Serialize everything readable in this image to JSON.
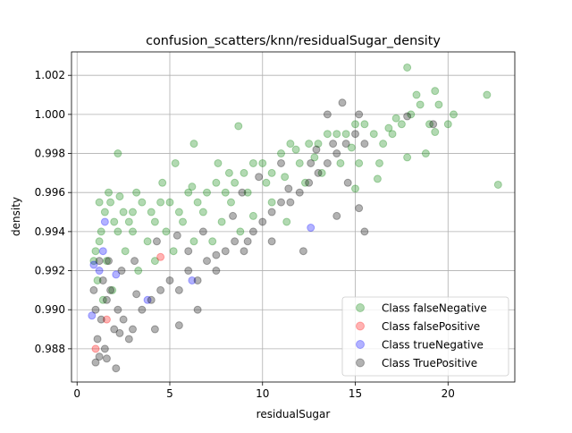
{
  "chart_data": {
    "type": "scatter",
    "title": "confusion_scatters/knn/residualSugar_density",
    "xlabel": "residualSugar",
    "ylabel": "density",
    "xlim": [
      -0.3,
      23.6
    ],
    "ylim": [
      0.9863,
      1.0032
    ],
    "xticks": [
      0,
      5,
      10,
      15,
      20
    ],
    "yticks": [
      0.988,
      0.99,
      0.992,
      0.994,
      0.996,
      0.998,
      1.0,
      1.002
    ],
    "grid": true,
    "legend_position": "lower-right",
    "series": [
      {
        "name": "Class falseNegative",
        "color": "#008000",
        "points": [
          [
            1.2,
            0.9935
          ],
          [
            1.5,
            0.995
          ],
          [
            1.0,
            0.993
          ],
          [
            2.0,
            0.9945
          ],
          [
            1.8,
            0.9955
          ],
          [
            1.3,
            0.994
          ],
          [
            1.1,
            0.9915
          ],
          [
            1.6,
            0.9925
          ],
          [
            2.2,
            0.994
          ],
          [
            2.5,
            0.995
          ],
          [
            3.0,
            0.995
          ],
          [
            3.2,
            0.996
          ],
          [
            2.8,
            0.9945
          ],
          [
            3.5,
            0.9955
          ],
          [
            4.0,
            0.995
          ],
          [
            4.5,
            0.9955
          ],
          [
            4.2,
            0.9945
          ],
          [
            5.0,
            0.9955
          ],
          [
            5.5,
            0.995
          ],
          [
            6.0,
            0.996
          ],
          [
            6.5,
            0.9955
          ],
          [
            7.0,
            0.996
          ],
          [
            7.5,
            0.9965
          ],
          [
            8.0,
            0.996
          ],
          [
            8.5,
            0.9965
          ],
          [
            9.0,
            0.997
          ],
          [
            9.5,
            0.9975
          ],
          [
            10.0,
            0.9975
          ],
          [
            10.5,
            0.997
          ],
          [
            11.0,
            0.998
          ],
          [
            11.5,
            0.9985
          ],
          [
            12.0,
            0.9975
          ],
          [
            12.5,
            0.9985
          ],
          [
            13.0,
            0.9985
          ],
          [
            13.5,
            0.999
          ],
          [
            14.0,
            0.999
          ],
          [
            14.5,
            0.999
          ],
          [
            15.0,
            0.9995
          ],
          [
            15.5,
            0.9995
          ],
          [
            16.0,
            0.999
          ],
          [
            16.5,
            0.9985
          ],
          [
            17.0,
            0.999
          ],
          [
            17.5,
            0.9995
          ],
          [
            18.0,
            1.0
          ],
          [
            18.5,
            1.0005
          ],
          [
            19.0,
            0.9995
          ],
          [
            19.5,
            1.0005
          ],
          [
            20.0,
            0.9995
          ],
          [
            20.3,
            1.0
          ],
          [
            17.8,
            1.0024
          ],
          [
            18.3,
            1.001
          ],
          [
            19.3,
            1.0012
          ],
          [
            22.1,
            1.001
          ],
          [
            22.7,
            0.9964
          ],
          [
            19.3,
            0.9991
          ],
          [
            18.8,
            0.998
          ],
          [
            17.8,
            0.9978
          ],
          [
            16.2,
            0.9967
          ],
          [
            2.2,
            0.998
          ],
          [
            6.3,
            0.9985
          ],
          [
            8.7,
            0.9994
          ],
          [
            5.3,
            0.9975
          ],
          [
            6.2,
            0.9963
          ],
          [
            3.0,
            0.994
          ],
          [
            3.8,
            0.9935
          ],
          [
            4.8,
            0.994
          ],
          [
            5.7,
            0.9945
          ],
          [
            6.8,
            0.995
          ],
          [
            7.8,
            0.9945
          ],
          [
            8.3,
            0.9955
          ],
          [
            9.2,
            0.996
          ],
          [
            10.2,
            0.9965
          ],
          [
            11.2,
            0.9968
          ],
          [
            12.3,
            0.9965
          ],
          [
            13.2,
            0.997
          ],
          [
            14.2,
            0.9975
          ],
          [
            15.2,
            0.9975
          ],
          [
            16.3,
            0.9975
          ],
          [
            15.0,
            0.9962
          ],
          [
            11.3,
            0.9945
          ],
          [
            10.5,
            0.9955
          ],
          [
            9.5,
            0.9948
          ],
          [
            8.8,
            0.994
          ],
          [
            7.3,
            0.9935
          ],
          [
            6.3,
            0.9935
          ],
          [
            5.2,
            0.993
          ],
          [
            4.2,
            0.9925
          ],
          [
            3.3,
            0.992
          ],
          [
            1.4,
            0.9905
          ],
          [
            1.9,
            0.991
          ],
          [
            2.6,
            0.993
          ],
          [
            1.2,
            0.9955
          ],
          [
            0.9,
            0.9925
          ],
          [
            1.7,
            0.996
          ],
          [
            2.3,
            0.9958
          ],
          [
            4.6,
            0.9965
          ],
          [
            7.6,
            0.9975
          ],
          [
            8.2,
            0.997
          ],
          [
            11.8,
            0.9982
          ],
          [
            12.8,
            0.9978
          ],
          [
            14.8,
            0.9983
          ],
          [
            16.8,
            0.9993
          ],
          [
            17.2,
            0.9998
          ]
        ]
      },
      {
        "name": "Class falsePositive",
        "color": "#ff0000",
        "points": [
          [
            4.5,
            0.9927
          ],
          [
            1.6,
            0.9895
          ],
          [
            1.0,
            0.988
          ]
        ]
      },
      {
        "name": "Class trueNegative",
        "color": "#0000ff",
        "points": [
          [
            0.9,
            0.9923
          ],
          [
            1.5,
            0.9945
          ],
          [
            0.8,
            0.9897
          ],
          [
            1.2,
            0.992
          ],
          [
            12.6,
            0.9942
          ],
          [
            3.8,
            0.9905
          ],
          [
            6.2,
            0.9915
          ],
          [
            1.4,
            0.993
          ],
          [
            2.1,
            0.9918
          ]
        ]
      },
      {
        "name": "Class TruePositive",
        "color": "#000000",
        "points": [
          [
            1.0,
            0.99
          ],
          [
            1.3,
            0.9895
          ],
          [
            1.6,
            0.9905
          ],
          [
            1.1,
            0.9885
          ],
          [
            1.5,
            0.988
          ],
          [
            2.0,
            0.989
          ],
          [
            2.5,
            0.9895
          ],
          [
            3.0,
            0.989
          ],
          [
            3.5,
            0.99
          ],
          [
            4.0,
            0.9905
          ],
          [
            4.5,
            0.991
          ],
          [
            5.0,
            0.9915
          ],
          [
            5.5,
            0.991
          ],
          [
            6.0,
            0.992
          ],
          [
            6.5,
            0.9915
          ],
          [
            7.0,
            0.9925
          ],
          [
            7.5,
            0.992
          ],
          [
            8.0,
            0.993
          ],
          [
            8.5,
            0.9935
          ],
          [
            9.0,
            0.993
          ],
          [
            9.5,
            0.994
          ],
          [
            10.0,
            0.9945
          ],
          [
            10.5,
            0.995
          ],
          [
            11.0,
            0.9955
          ],
          [
            11.5,
            0.9955
          ],
          [
            12.0,
            0.996
          ],
          [
            12.5,
            0.9965
          ],
          [
            13.0,
            0.997
          ],
          [
            13.5,
            0.9975
          ],
          [
            14.0,
            0.998
          ],
          [
            14.5,
            0.9985
          ],
          [
            15.0,
            0.999
          ],
          [
            15.5,
            0.9985
          ],
          [
            13.5,
            1.0
          ],
          [
            14.3,
            1.0006
          ],
          [
            15.2,
            1.0
          ],
          [
            17.8,
            0.9999
          ],
          [
            19.2,
            0.9995
          ],
          [
            15.5,
            0.994
          ],
          [
            15.2,
            0.9952
          ],
          [
            14.0,
            0.9948
          ],
          [
            12.2,
            0.993
          ],
          [
            10.5,
            0.9935
          ],
          [
            9.2,
            0.9935
          ],
          [
            7.5,
            0.9928
          ],
          [
            6.0,
            0.993
          ],
          [
            1.0,
            0.9873
          ],
          [
            1.2,
            0.9876
          ],
          [
            1.6,
            0.9875
          ],
          [
            2.1,
            0.987
          ],
          [
            2.3,
            0.9888
          ],
          [
            2.8,
            0.9885
          ],
          [
            4.2,
            0.989
          ],
          [
            5.5,
            0.9892
          ],
          [
            6.5,
            0.99
          ],
          [
            3.2,
            0.9908
          ],
          [
            2.2,
            0.99
          ],
          [
            1.8,
            0.991
          ],
          [
            1.4,
            0.9915
          ],
          [
            1.2,
            0.9925
          ],
          [
            0.9,
            0.991
          ],
          [
            1.7,
            0.9925
          ],
          [
            2.4,
            0.992
          ],
          [
            3.1,
            0.9925
          ],
          [
            4.3,
            0.9935
          ],
          [
            5.4,
            0.9938
          ],
          [
            6.8,
            0.994
          ],
          [
            8.4,
            0.9948
          ],
          [
            11.4,
            0.9962
          ],
          [
            12.6,
            0.9975
          ],
          [
            13.8,
            0.9985
          ],
          [
            14.6,
            0.9965
          ],
          [
            12.9,
            0.9982
          ],
          [
            11.0,
            0.9975
          ],
          [
            9.8,
            0.9968
          ],
          [
            8.9,
            0.996
          ]
        ]
      }
    ]
  }
}
